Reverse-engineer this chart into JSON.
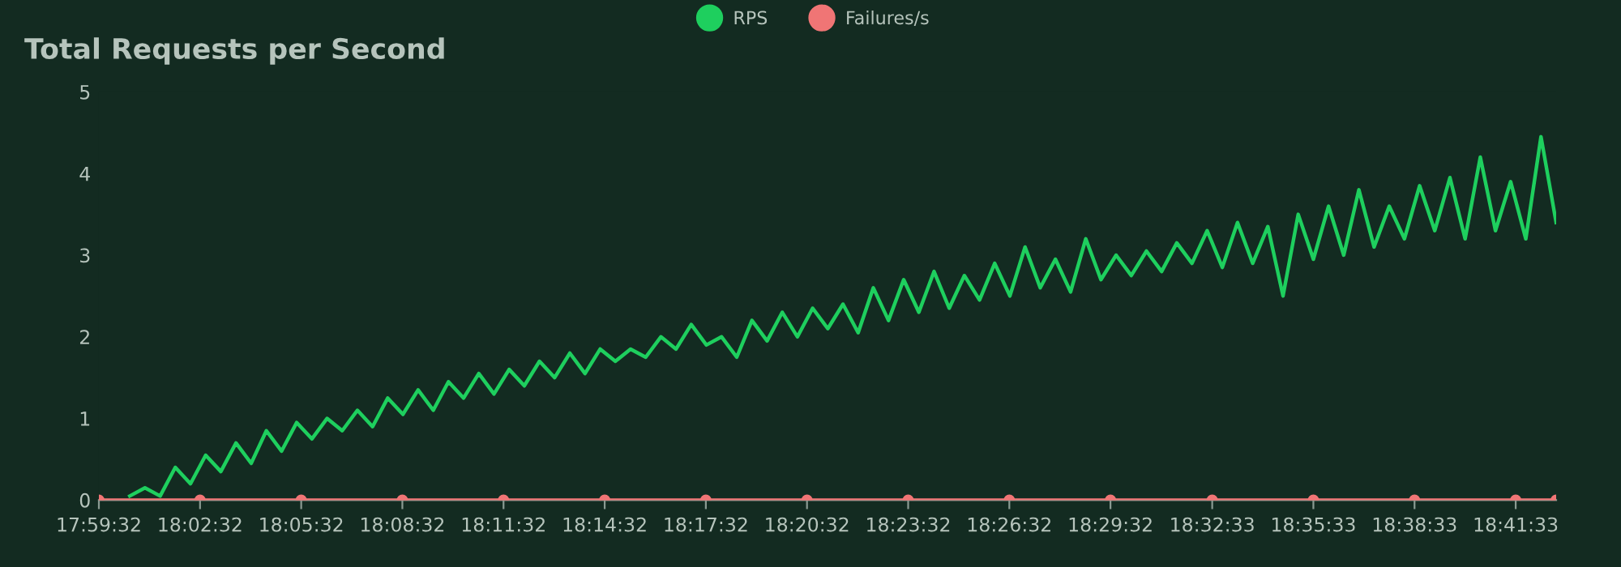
{
  "chart_data": {
    "type": "line",
    "title": "Total Requests per Second",
    "xlim": [
      17.99222,
      18.7125
    ],
    "ylim": [
      0,
      5
    ],
    "yticks": [
      0,
      1,
      2,
      3,
      4,
      5
    ],
    "xticks": [
      {
        "value": 17.99222,
        "label": "17:59:32"
      },
      {
        "value": 18.04222,
        "label": "18:02:32"
      },
      {
        "value": 18.09222,
        "label": "18:05:32"
      },
      {
        "value": 18.14222,
        "label": "18:08:32"
      },
      {
        "value": 18.19222,
        "label": "18:11:32"
      },
      {
        "value": 18.24222,
        "label": "18:14:32"
      },
      {
        "value": 18.29222,
        "label": "18:17:32"
      },
      {
        "value": 18.34222,
        "label": "18:20:32"
      },
      {
        "value": 18.39222,
        "label": "18:23:32"
      },
      {
        "value": 18.44222,
        "label": "18:26:32"
      },
      {
        "value": 18.49222,
        "label": "18:29:32"
      },
      {
        "value": 18.5425,
        "label": "18:32:33"
      },
      {
        "value": 18.5925,
        "label": "18:35:33"
      },
      {
        "value": 18.6425,
        "label": "18:38:33"
      },
      {
        "value": 18.6925,
        "label": "18:41:33"
      }
    ],
    "grid": false,
    "legend": "top",
    "series": [
      {
        "name": "RPS",
        "color": "#1ecf5e",
        "marker": "none",
        "x": [
          18.0075,
          18.015,
          18.0225,
          18.03,
          18.0375,
          18.045,
          18.0525,
          18.06,
          18.0675,
          18.075,
          18.0825,
          18.09,
          18.0975,
          18.105,
          18.1125,
          18.12,
          18.1275,
          18.135,
          18.1425,
          18.15,
          18.1575,
          18.165,
          18.1725,
          18.18,
          18.1875,
          18.195,
          18.2025,
          18.21,
          18.2175,
          18.225,
          18.2325,
          18.24,
          18.2475,
          18.255,
          18.2625,
          18.27,
          18.2775,
          18.285,
          18.2925,
          18.3,
          18.3075,
          18.315,
          18.3225,
          18.33,
          18.3375,
          18.345,
          18.3525,
          18.36,
          18.3675,
          18.375,
          18.3825,
          18.39,
          18.3975,
          18.405,
          18.4125,
          18.42,
          18.4275,
          18.435,
          18.4425,
          18.45,
          18.4575,
          18.465,
          18.4725,
          18.48,
          18.4875,
          18.495,
          18.5025,
          18.51,
          18.5175,
          18.525,
          18.5325,
          18.54,
          18.5475,
          18.555,
          18.5625,
          18.57,
          18.5775,
          18.585,
          18.5925,
          18.6,
          18.6075,
          18.615,
          18.6225,
          18.63,
          18.6375,
          18.645,
          18.6525,
          18.66,
          18.6675,
          18.675,
          18.6825,
          18.69,
          18.6975,
          18.705,
          18.7125
        ],
        "values": [
          0.05,
          0.15,
          0.05,
          0.4,
          0.2,
          0.55,
          0.35,
          0.7,
          0.45,
          0.85,
          0.6,
          0.95,
          0.75,
          1.0,
          0.85,
          1.1,
          0.9,
          1.25,
          1.05,
          1.35,
          1.1,
          1.45,
          1.25,
          1.55,
          1.3,
          1.6,
          1.4,
          1.7,
          1.5,
          1.8,
          1.55,
          1.85,
          1.7,
          1.85,
          1.75,
          2.0,
          1.85,
          2.15,
          1.9,
          2.0,
          1.75,
          2.2,
          1.95,
          2.3,
          2.0,
          2.35,
          2.1,
          2.4,
          2.05,
          2.6,
          2.2,
          2.7,
          2.3,
          2.8,
          2.35,
          2.75,
          2.45,
          2.9,
          2.5,
          3.1,
          2.6,
          2.95,
          2.55,
          3.2,
          2.7,
          3.0,
          2.75,
          3.05,
          2.8,
          3.15,
          2.9,
          3.3,
          2.85,
          3.4,
          2.9,
          3.35,
          2.5,
          3.5,
          2.95,
          3.6,
          3.0,
          3.8,
          3.1,
          3.6,
          3.2,
          3.85,
          3.3,
          3.95,
          3.2,
          4.2,
          3.3,
          3.9,
          3.2,
          4.45,
          3.4
        ]
      },
      {
        "name": "Failures/s",
        "color": "#f07575",
        "marker": "circle",
        "x": [
          17.99222,
          18.04222,
          18.09222,
          18.14222,
          18.19222,
          18.24222,
          18.29222,
          18.34222,
          18.39222,
          18.44222,
          18.49222,
          18.5425,
          18.5925,
          18.6425,
          18.6925,
          18.7125
        ],
        "values": [
          0,
          0,
          0,
          0,
          0,
          0,
          0,
          0,
          0,
          0,
          0,
          0,
          0,
          0,
          0,
          0
        ]
      }
    ]
  }
}
